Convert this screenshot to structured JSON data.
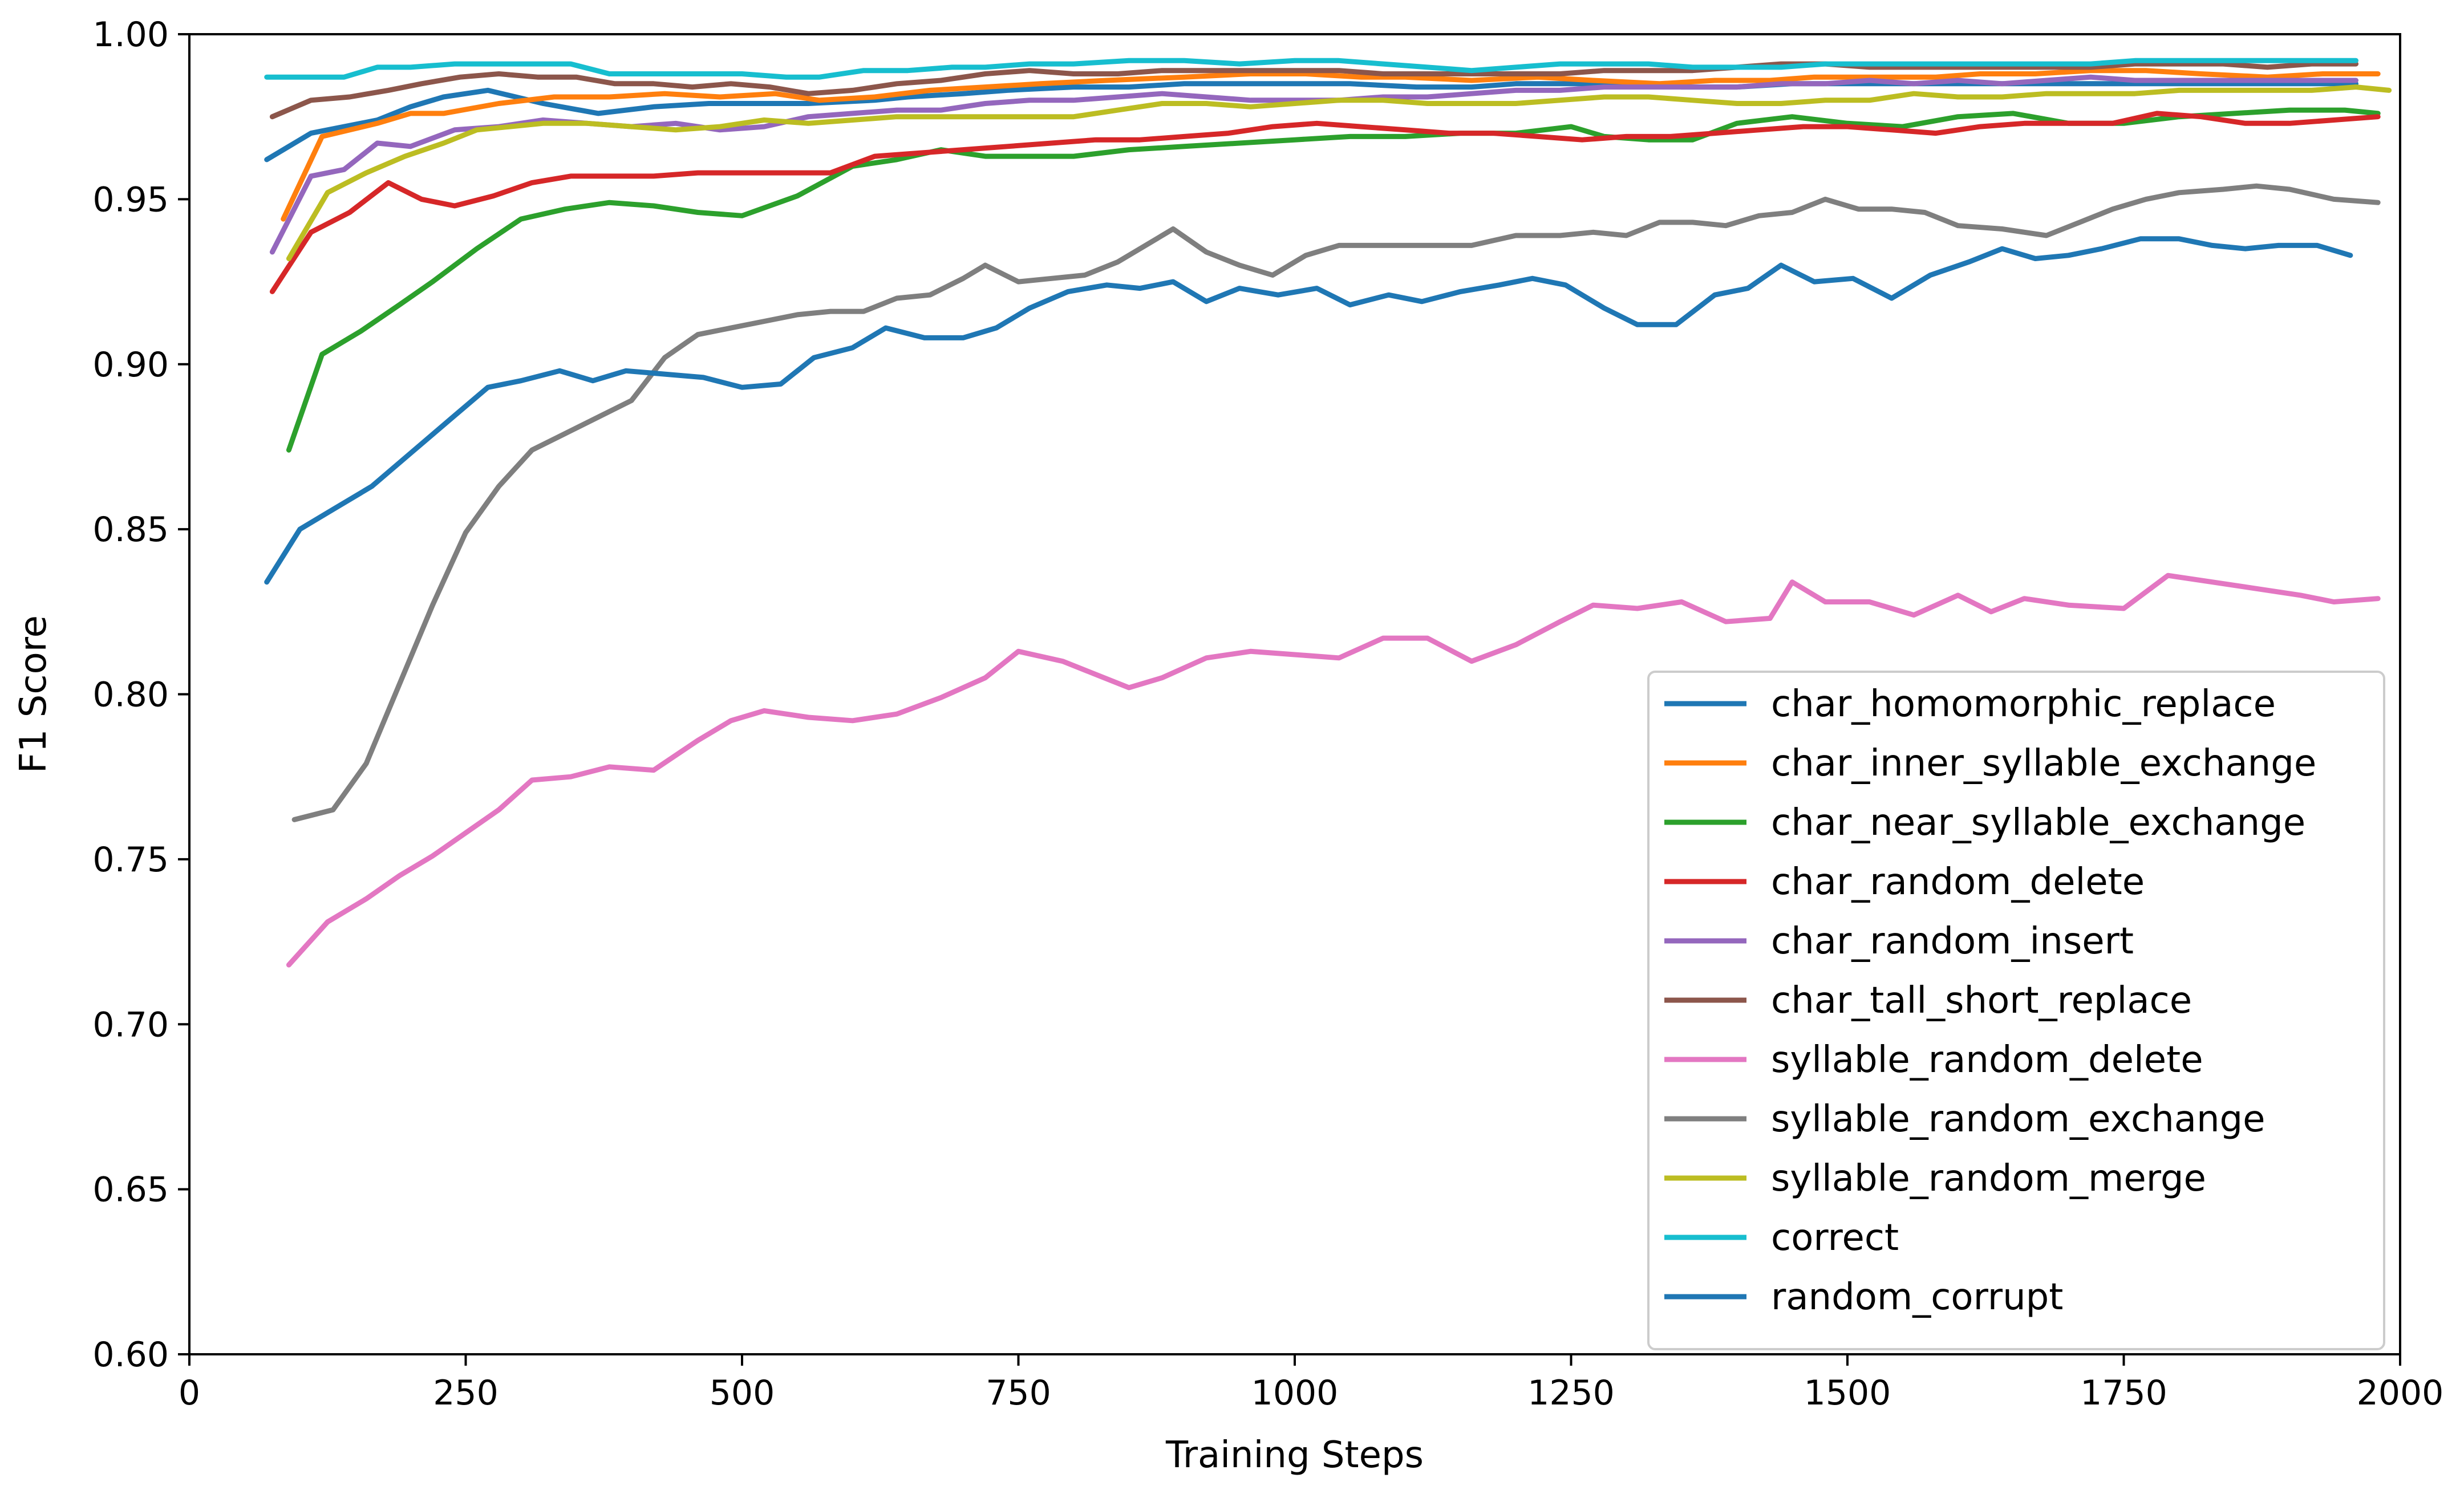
{
  "chart_data": {
    "type": "line",
    "title": "",
    "xlabel": "Training Steps",
    "ylabel": "F1 Score",
    "xlim": [
      0,
      2000
    ],
    "ylim": [
      0.6,
      1.0
    ],
    "x_ticks": [
      "0",
      "250",
      "500",
      "750",
      "1000",
      "1250",
      "1500",
      "1750",
      "2000"
    ],
    "y_ticks": [
      "0.60",
      "0.65",
      "0.70",
      "0.75",
      "0.80",
      "0.85",
      "0.90",
      "0.95",
      "1.00"
    ],
    "grid": false,
    "legend_position": "lower-right",
    "series": [
      {
        "name": "char_homomorphic_replace",
        "color": "#1f77b4",
        "x": [
          70,
          110,
          140,
          170,
          200,
          230,
          270,
          320,
          370,
          420,
          470,
          520,
          560,
          620,
          650,
          700,
          740,
          800,
          850,
          900,
          960,
          1000,
          1050,
          1110,
          1160,
          1200,
          1250,
          1300,
          1350,
          1400,
          1450,
          1500,
          1550,
          1600,
          1650,
          1700,
          1750,
          1800,
          1850,
          1900,
          1960
        ],
        "y": [
          0.962,
          0.97,
          0.972,
          0.974,
          0.978,
          0.981,
          0.983,
          0.979,
          0.976,
          0.978,
          0.979,
          0.979,
          0.979,
          0.98,
          0.981,
          0.982,
          0.983,
          0.984,
          0.984,
          0.985,
          0.985,
          0.985,
          0.985,
          0.984,
          0.984,
          0.985,
          0.985,
          0.985,
          0.984,
          0.984,
          0.985,
          0.985,
          0.985,
          0.985,
          0.985,
          0.985,
          0.985,
          0.985,
          0.985,
          0.985,
          0.985
        ]
      },
      {
        "name": "char_inner_syllable_exchange",
        "color": "#ff7f0e",
        "x": [
          85,
          120,
          170,
          200,
          230,
          280,
          330,
          380,
          430,
          480,
          530,
          570,
          620,
          670,
          720,
          770,
          830,
          900,
          960,
          1010,
          1060,
          1100,
          1160,
          1220,
          1270,
          1330,
          1380,
          1430,
          1470,
          1520,
          1580,
          1620,
          1670,
          1720,
          1770,
          1820,
          1880,
          1930,
          1980
        ],
        "y": [
          0.944,
          0.969,
          0.973,
          0.976,
          0.976,
          0.979,
          0.981,
          0.981,
          0.982,
          0.981,
          0.982,
          0.98,
          0.981,
          0.983,
          0.984,
          0.985,
          0.986,
          0.987,
          0.988,
          0.988,
          0.987,
          0.987,
          0.986,
          0.987,
          0.986,
          0.985,
          0.986,
          0.986,
          0.987,
          0.987,
          0.987,
          0.988,
          0.988,
          0.989,
          0.989,
          0.988,
          0.987,
          0.988,
          0.988
        ]
      },
      {
        "name": "char_near_syllable_exchange",
        "color": "#2ca02c",
        "x": [
          90,
          120,
          155,
          190,
          220,
          260,
          300,
          340,
          380,
          420,
          460,
          500,
          550,
          600,
          640,
          680,
          720,
          760,
          800,
          850,
          900,
          950,
          1000,
          1050,
          1100,
          1150,
          1200,
          1250,
          1280,
          1320,
          1360,
          1400,
          1450,
          1500,
          1550,
          1600,
          1650,
          1700,
          1750,
          1800,
          1850,
          1900,
          1950,
          1980
        ],
        "y": [
          0.874,
          0.903,
          0.91,
          0.918,
          0.925,
          0.935,
          0.944,
          0.947,
          0.949,
          0.948,
          0.946,
          0.945,
          0.951,
          0.96,
          0.962,
          0.965,
          0.963,
          0.963,
          0.963,
          0.965,
          0.966,
          0.967,
          0.968,
          0.969,
          0.969,
          0.97,
          0.97,
          0.972,
          0.969,
          0.968,
          0.968,
          0.973,
          0.975,
          0.973,
          0.972,
          0.975,
          0.976,
          0.973,
          0.973,
          0.975,
          0.976,
          0.977,
          0.977,
          0.976
        ]
      },
      {
        "name": "char_random_delete",
        "color": "#d62728",
        "x": [
          75,
          110,
          145,
          180,
          210,
          240,
          275,
          310,
          345,
          380,
          420,
          460,
          500,
          540,
          580,
          620,
          660,
          700,
          740,
          780,
          820,
          860,
          900,
          940,
          980,
          1020,
          1060,
          1100,
          1140,
          1180,
          1220,
          1260,
          1300,
          1340,
          1380,
          1420,
          1460,
          1500,
          1540,
          1580,
          1620,
          1660,
          1700,
          1740,
          1780,
          1820,
          1860,
          1900,
          1940,
          1980
        ],
        "y": [
          0.922,
          0.94,
          0.946,
          0.955,
          0.95,
          0.948,
          0.951,
          0.955,
          0.957,
          0.957,
          0.957,
          0.958,
          0.958,
          0.958,
          0.958,
          0.963,
          0.964,
          0.965,
          0.966,
          0.967,
          0.968,
          0.968,
          0.969,
          0.97,
          0.972,
          0.973,
          0.972,
          0.971,
          0.97,
          0.97,
          0.969,
          0.968,
          0.969,
          0.969,
          0.97,
          0.971,
          0.972,
          0.972,
          0.971,
          0.97,
          0.972,
          0.973,
          0.973,
          0.973,
          0.976,
          0.975,
          0.973,
          0.973,
          0.974,
          0.975
        ]
      },
      {
        "name": "char_random_insert",
        "color": "#9467bd",
        "x": [
          75,
          110,
          140,
          170,
          200,
          240,
          280,
          320,
          360,
          400,
          440,
          480,
          520,
          560,
          600,
          640,
          680,
          720,
          760,
          800,
          840,
          880,
          920,
          960,
          1000,
          1040,
          1080,
          1120,
          1160,
          1200,
          1240,
          1280,
          1320,
          1360,
          1400,
          1440,
          1480,
          1520,
          1560,
          1600,
          1640,
          1680,
          1720,
          1760,
          1800,
          1840,
          1880,
          1920,
          1960
        ],
        "y": [
          0.934,
          0.957,
          0.959,
          0.967,
          0.966,
          0.971,
          0.972,
          0.974,
          0.973,
          0.972,
          0.973,
          0.971,
          0.972,
          0.975,
          0.976,
          0.977,
          0.977,
          0.979,
          0.98,
          0.98,
          0.981,
          0.982,
          0.981,
          0.98,
          0.98,
          0.98,
          0.981,
          0.981,
          0.982,
          0.983,
          0.983,
          0.984,
          0.984,
          0.984,
          0.984,
          0.985,
          0.985,
          0.986,
          0.985,
          0.986,
          0.985,
          0.986,
          0.987,
          0.986,
          0.986,
          0.986,
          0.986,
          0.986,
          0.986
        ]
      },
      {
        "name": "char_tall_short_replace",
        "color": "#8c564b",
        "x": [
          75,
          110,
          145,
          180,
          210,
          245,
          280,
          315,
          350,
          385,
          420,
          455,
          490,
          525,
          560,
          600,
          640,
          680,
          720,
          760,
          800,
          840,
          880,
          920,
          960,
          1000,
          1040,
          1080,
          1120,
          1160,
          1200,
          1240,
          1280,
          1320,
          1360,
          1400,
          1440,
          1480,
          1520,
          1560,
          1600,
          1640,
          1680,
          1720,
          1760,
          1800,
          1840,
          1880,
          1920,
          1960
        ],
        "y": [
          0.975,
          0.98,
          0.981,
          0.983,
          0.985,
          0.987,
          0.988,
          0.987,
          0.987,
          0.985,
          0.985,
          0.984,
          0.985,
          0.984,
          0.982,
          0.983,
          0.985,
          0.986,
          0.988,
          0.989,
          0.988,
          0.988,
          0.989,
          0.989,
          0.989,
          0.989,
          0.989,
          0.988,
          0.988,
          0.988,
          0.988,
          0.988,
          0.989,
          0.989,
          0.989,
          0.99,
          0.991,
          0.991,
          0.99,
          0.99,
          0.99,
          0.99,
          0.99,
          0.99,
          0.991,
          0.991,
          0.991,
          0.99,
          0.991,
          0.991
        ]
      },
      {
        "name": "syllable_random_delete",
        "color": "#e377c2",
        "x": [
          90,
          125,
          160,
          190,
          220,
          250,
          280,
          310,
          345,
          380,
          420,
          460,
          490,
          520,
          560,
          600,
          640,
          680,
          720,
          750,
          790,
          820,
          850,
          880,
          920,
          960,
          1000,
          1040,
          1080,
          1120,
          1160,
          1200,
          1240,
          1270,
          1310,
          1350,
          1390,
          1430,
          1450,
          1480,
          1520,
          1560,
          1600,
          1630,
          1660,
          1700,
          1750,
          1790,
          1830,
          1870,
          1910,
          1940,
          1980
        ],
        "y": [
          0.718,
          0.731,
          0.738,
          0.745,
          0.751,
          0.758,
          0.765,
          0.774,
          0.775,
          0.778,
          0.777,
          0.786,
          0.792,
          0.795,
          0.793,
          0.792,
          0.794,
          0.799,
          0.805,
          0.813,
          0.81,
          0.806,
          0.802,
          0.805,
          0.811,
          0.813,
          0.812,
          0.811,
          0.817,
          0.817,
          0.81,
          0.815,
          0.822,
          0.827,
          0.826,
          0.828,
          0.822,
          0.823,
          0.834,
          0.828,
          0.828,
          0.824,
          0.83,
          0.825,
          0.829,
          0.827,
          0.826,
          0.836,
          0.834,
          0.832,
          0.83,
          0.828,
          0.829
        ]
      },
      {
        "name": "syllable_random_exchange",
        "color": "#7f7f7f",
        "x": [
          95,
          130,
          160,
          190,
          220,
          250,
          280,
          310,
          340,
          370,
          400,
          430,
          460,
          490,
          520,
          550,
          580,
          610,
          640,
          670,
          700,
          720,
          750,
          780,
          810,
          840,
          870,
          890,
          920,
          950,
          980,
          1010,
          1040,
          1070,
          1100,
          1130,
          1160,
          1200,
          1240,
          1270,
          1300,
          1330,
          1360,
          1390,
          1420,
          1450,
          1480,
          1510,
          1540,
          1570,
          1600,
          1640,
          1680,
          1710,
          1740,
          1770,
          1800,
          1840,
          1870,
          1900,
          1940,
          1980
        ],
        "y": [
          0.762,
          0.765,
          0.779,
          0.803,
          0.827,
          0.849,
          0.863,
          0.874,
          0.879,
          0.884,
          0.889,
          0.902,
          0.909,
          0.911,
          0.913,
          0.915,
          0.916,
          0.916,
          0.92,
          0.921,
          0.926,
          0.93,
          0.925,
          0.926,
          0.927,
          0.931,
          0.937,
          0.941,
          0.934,
          0.93,
          0.927,
          0.933,
          0.936,
          0.936,
          0.936,
          0.936,
          0.936,
          0.939,
          0.939,
          0.94,
          0.939,
          0.943,
          0.943,
          0.942,
          0.945,
          0.946,
          0.95,
          0.947,
          0.947,
          0.946,
          0.942,
          0.941,
          0.939,
          0.943,
          0.947,
          0.95,
          0.952,
          0.953,
          0.954,
          0.953,
          0.95,
          0.949
        ]
      },
      {
        "name": "syllable_random_merge",
        "color": "#bcbd22",
        "x": [
          90,
          125,
          160,
          195,
          230,
          260,
          290,
          320,
          360,
          400,
          440,
          480,
          520,
          560,
          600,
          640,
          680,
          720,
          760,
          800,
          840,
          880,
          920,
          960,
          1000,
          1040,
          1080,
          1120,
          1160,
          1200,
          1240,
          1280,
          1320,
          1360,
          1400,
          1440,
          1480,
          1520,
          1560,
          1600,
          1640,
          1680,
          1720,
          1760,
          1800,
          1840,
          1880,
          1920,
          1960,
          1990
        ],
        "y": [
          0.932,
          0.952,
          0.958,
          0.963,
          0.967,
          0.971,
          0.972,
          0.973,
          0.973,
          0.972,
          0.971,
          0.972,
          0.974,
          0.973,
          0.974,
          0.975,
          0.975,
          0.975,
          0.975,
          0.975,
          0.977,
          0.979,
          0.979,
          0.978,
          0.979,
          0.98,
          0.98,
          0.979,
          0.979,
          0.979,
          0.98,
          0.981,
          0.981,
          0.98,
          0.979,
          0.979,
          0.98,
          0.98,
          0.982,
          0.981,
          0.981,
          0.982,
          0.982,
          0.982,
          0.983,
          0.983,
          0.983,
          0.983,
          0.984,
          0.983
        ]
      },
      {
        "name": "correct",
        "color": "#17becf",
        "x": [
          70,
          110,
          140,
          170,
          200,
          240,
          280,
          310,
          345,
          380,
          420,
          460,
          500,
          540,
          570,
          610,
          650,
          690,
          720,
          760,
          800,
          850,
          900,
          950,
          1000,
          1040,
          1080,
          1120,
          1160,
          1200,
          1240,
          1280,
          1320,
          1360,
          1400,
          1440,
          1480,
          1520,
          1560,
          1600,
          1640,
          1680,
          1720,
          1760,
          1800,
          1840,
          1880,
          1920,
          1960
        ],
        "y": [
          0.987,
          0.987,
          0.987,
          0.99,
          0.99,
          0.991,
          0.991,
          0.991,
          0.991,
          0.988,
          0.988,
          0.988,
          0.988,
          0.987,
          0.987,
          0.989,
          0.989,
          0.99,
          0.99,
          0.991,
          0.991,
          0.992,
          0.992,
          0.991,
          0.992,
          0.992,
          0.991,
          0.99,
          0.989,
          0.99,
          0.991,
          0.991,
          0.991,
          0.99,
          0.99,
          0.99,
          0.991,
          0.991,
          0.991,
          0.991,
          0.991,
          0.991,
          0.991,
          0.992,
          0.992,
          0.992,
          0.992,
          0.992,
          0.992
        ]
      },
      {
        "name": "random_corrupt",
        "color": "#1f77b4",
        "x": [
          70,
          100,
          130,
          165,
          200,
          235,
          270,
          300,
          335,
          365,
          395,
          430,
          465,
          500,
          535,
          565,
          600,
          630,
          665,
          700,
          730,
          760,
          795,
          830,
          860,
          890,
          920,
          950,
          985,
          1020,
          1050,
          1085,
          1115,
          1150,
          1185,
          1215,
          1245,
          1280,
          1310,
          1345,
          1380,
          1410,
          1440,
          1470,
          1505,
          1540,
          1575,
          1610,
          1640,
          1670,
          1700,
          1730,
          1765,
          1800,
          1830,
          1860,
          1890,
          1925,
          1955
        ],
        "y": [
          0.834,
          0.85,
          0.856,
          0.863,
          0.873,
          0.883,
          0.893,
          0.895,
          0.898,
          0.895,
          0.898,
          0.897,
          0.896,
          0.893,
          0.894,
          0.902,
          0.905,
          0.911,
          0.908,
          0.908,
          0.911,
          0.917,
          0.922,
          0.924,
          0.923,
          0.925,
          0.919,
          0.923,
          0.921,
          0.923,
          0.918,
          0.921,
          0.919,
          0.922,
          0.924,
          0.926,
          0.924,
          0.917,
          0.912,
          0.912,
          0.921,
          0.923,
          0.93,
          0.925,
          0.926,
          0.92,
          0.927,
          0.931,
          0.935,
          0.932,
          0.933,
          0.935,
          0.938,
          0.938,
          0.936,
          0.935,
          0.936,
          0.936,
          0.933
        ]
      }
    ]
  }
}
